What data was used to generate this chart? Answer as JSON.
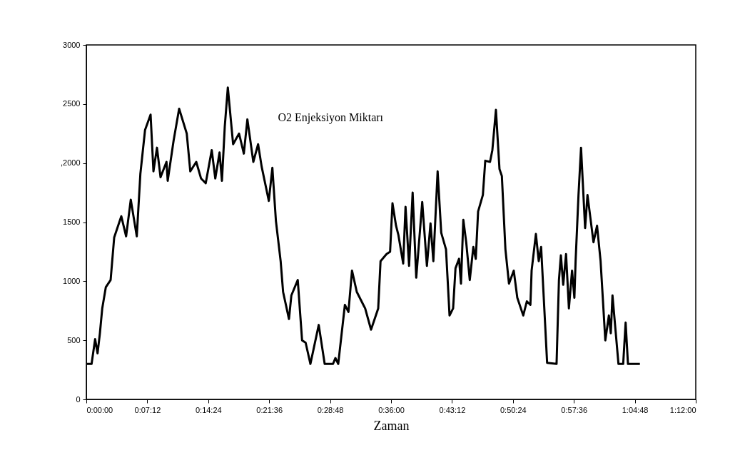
{
  "chart_data": {
    "type": "line",
    "title": "O2 Enjeksiyon Miktarı",
    "xlabel": "Zaman",
    "x": [
      0,
      0.0103,
      0.0173,
      0.0221,
      0.0267,
      0.0313,
      0.0384,
      0.0478,
      0.0548,
      0.0688,
      0.0783,
      0.0875,
      0.0993,
      0.1064,
      0.1156,
      0.1265,
      0.1321,
      0.1391,
      0.1461,
      0.1578,
      0.1602,
      0.1718,
      0.1827,
      0.1977,
      0.2047,
      0.2164,
      0.2258,
      0.2351,
      0.2469,
      0.2539,
      0.2623,
      0.267,
      0.2726,
      0.2786,
      0.289,
      0.3007,
      0.3101,
      0.3171,
      0.3288,
      0.3382,
      0.3452,
      0.3593,
      0.3663,
      0.3733,
      0.3826,
      0.3874,
      0.399,
      0.4037,
      0.4163,
      0.4248,
      0.4318,
      0.4412,
      0.4576,
      0.4693,
      0.4857,
      0.4904,
      0.496,
      0.5091,
      0.5161,
      0.5231,
      0.5325,
      0.549,
      0.5606,
      0.5747,
      0.5793,
      0.5911,
      0.5981,
      0.6028,
      0.6098,
      0.6145,
      0.6239,
      0.6285,
      0.6355,
      0.6425,
      0.6496,
      0.6614,
      0.6706,
      0.6777,
      0.6833,
      0.6917,
      0.6988,
      0.7082,
      0.7152,
      0.7222,
      0.7269,
      0.7339,
      0.7377,
      0.7423,
      0.748,
      0.755,
      0.762,
      0.7668,
      0.7714,
      0.7808,
      0.7855,
      0.7949,
      0.7995,
      0.8065,
      0.8135,
      0.8182,
      0.8252,
      0.8322,
      0.8416,
      0.8486,
      0.8603,
      0.8674,
      0.8744,
      0.8768,
      0.8852,
      0.8908,
      0.8955,
      0.9073,
      0.9259,
      0.9306,
      0.9344,
      0.939,
      0.9446,
      0.9502,
      0.9564,
      0.961,
      0.9634,
      0.9691,
      0.9741,
      0.9821,
      0.9868,
      0.9986,
      1.0056,
      1.0126,
      1.0219,
      1.0289,
      1.0327,
      1.036,
      1.0478,
      1.0571,
      1.0619,
      1.0665,
      1.09
    ],
    "series": [
      {
        "color": "#000000",
        "values": [
          300,
          300,
          510,
          390,
          560,
          770,
          950,
          1010,
          1370,
          1550,
          1380,
          1690,
          1380,
          1910,
          2280,
          2410,
          1930,
          2130,
          1880,
          2010,
          1850,
          2190,
          2460,
          2250,
          1930,
          2010,
          1870,
          1830,
          2110,
          1870,
          2090,
          1850,
          2310,
          2640,
          2160,
          2250,
          2080,
          2370,
          2010,
          2160,
          1970,
          1680,
          1960,
          1510,
          1170,
          910,
          680,
          880,
          1010,
          500,
          480,
          300,
          630,
          300,
          300,
          350,
          300,
          800,
          740,
          1090,
          910,
          770,
          590,
          770,
          1170,
          1230,
          1250,
          1660,
          1470,
          1390,
          1150,
          1630,
          1130,
          1750,
          1030,
          1670,
          1130,
          1490,
          1170,
          1930,
          1410,
          1270,
          710,
          770,
          1110,
          1190,
          980,
          1520,
          1330,
          1010,
          1290,
          1190,
          1590,
          1730,
          2020,
          2010,
          2110,
          2450,
          1950,
          1890,
          1270,
          980,
          1090,
          860,
          710,
          830,
          800,
          1090,
          1400,
          1170,
          1290,
          310,
          300,
          1010,
          1220,
          970,
          1230,
          770,
          1090,
          860,
          1170,
          1730,
          2130,
          1450,
          1730,
          1330,
          1470,
          1170,
          500,
          710,
          560,
          880,
          300,
          300,
          650,
          300,
          300
        ]
      }
    ],
    "xlim": [
      0,
      1.2
    ],
    "xticks": [
      {
        "value": 0,
        "label": "0:00:00"
      },
      {
        "value": 0.12,
        "label": "0:07:12"
      },
      {
        "value": 0.24,
        "label": "0:14:24"
      },
      {
        "value": 0.36,
        "label": "0:21:36"
      },
      {
        "value": 0.48,
        "label": "0:28:48"
      },
      {
        "value": 0.6,
        "label": "0:36:00"
      },
      {
        "value": 0.72,
        "label": "0:43:12"
      },
      {
        "value": 0.84,
        "label": "0:50:24"
      },
      {
        "value": 0.96,
        "label": "0:57:36"
      },
      {
        "value": 1.08,
        "label": "1:04:48"
      },
      {
        "value": 1.2,
        "label": "1:12:00"
      }
    ],
    "ylim": [
      0,
      3000
    ],
    "yticks": [
      0,
      500,
      1000,
      1500,
      {
        "value": 2000,
        "label": ",2000"
      },
      2500,
      3000
    ],
    "marker": "none",
    "line_style": "solid"
  }
}
